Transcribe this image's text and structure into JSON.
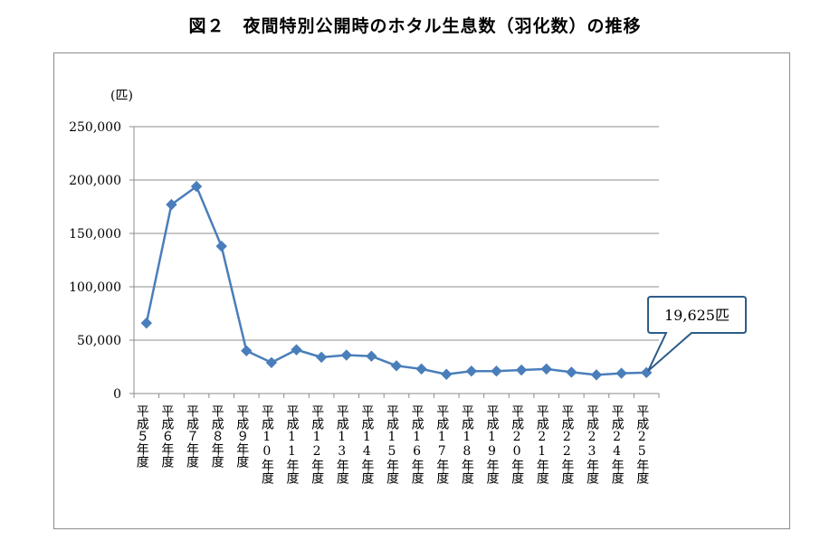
{
  "title": "図２　夜間特別公開時のホタル生息数（羽化数）の推移",
  "chart_data": {
    "type": "line",
    "title": "図２　夜間特別公開時のホタル生息数（羽化数）の推移",
    "ylabel": "(匹)",
    "xlabel": "",
    "ylim": [
      0,
      250000
    ],
    "yticks": [
      0,
      50000,
      100000,
      150000,
      200000,
      250000
    ],
    "ytick_labels": [
      "0",
      "50,000",
      "100,000",
      "150,000",
      "200,000",
      "250,000"
    ],
    "grid": true,
    "legend": "none",
    "categories": [
      "平成５年度",
      "平成６年度",
      "平成７年度",
      "平成８年度",
      "平成９年度",
      "平成10年度",
      "平成11年度",
      "平成12年度",
      "平成13年度",
      "平成14年度",
      "平成15年度",
      "平成16年度",
      "平成17年度",
      "平成18年度",
      "平成19年度",
      "平成20年度",
      "平成21年度",
      "平成22年度",
      "平成23年度",
      "平成24年度",
      "平成25年度"
    ],
    "series": [
      {
        "color": "#4a7ebb",
        "values": [
          66000,
          177000,
          194000,
          138000,
          40000,
          29000,
          41000,
          34000,
          36000,
          35000,
          26000,
          23000,
          18000,
          21000,
          21000,
          22000,
          23000,
          20000,
          17500,
          19000,
          19625
        ]
      }
    ],
    "annotation": {
      "text": "19,625匹",
      "category_index": 20
    }
  }
}
